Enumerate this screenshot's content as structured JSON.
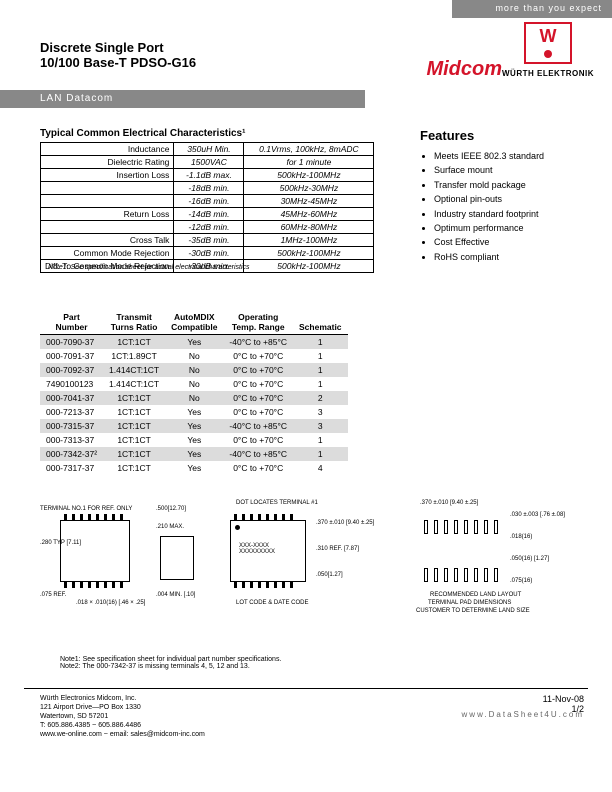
{
  "header": {
    "tagline": "more than you expect",
    "brand": "WÜRTH ELEKTRONIK",
    "midcom": "Midcom",
    "title_line1": "Discrete Single Port",
    "title_line2": "10/100 Base-T PDSO-G16",
    "band": "LAN Datacom",
    "logo_color": "#d4142a"
  },
  "characteristics": {
    "heading": "Typical Common Electrical Characteristics¹",
    "rows": [
      {
        "label": "Inductance",
        "v1": "350uH Min.",
        "v2": "0.1Vrms, 100kHz, 8mADC"
      },
      {
        "label": "Dielectric Rating",
        "v1": "1500VAC",
        "v2": "for 1 minute"
      },
      {
        "label": "Insertion Loss",
        "v1": "-1.1dB max.",
        "v2": "500kHz-100MHz"
      },
      {
        "label": "",
        "v1": "-18dB min.",
        "v2": "500kHz-30MHz"
      },
      {
        "label": "",
        "v1": "-16dB min.",
        "v2": "30MHz-45MHz"
      },
      {
        "label": "Return Loss",
        "v1": "-14dB min.",
        "v2": "45MHz-60MHz"
      },
      {
        "label": "",
        "v1": "-12dB min.",
        "v2": "60MHz-80MHz"
      },
      {
        "label": "Cross Talk",
        "v1": "-35dB min.",
        "v2": "1MHz-100MHz"
      },
      {
        "label": "Common Mode Rejection",
        "v1": "-30dB min.",
        "v2": "500kHz-100MHz"
      },
      {
        "label": "Diff. To Common Mode Rejection",
        "v1": "-30dB min.",
        "v2": "500kHz-100MHz"
      }
    ],
    "note": "Note1:  See specification sheet for actual electrical characteristics"
  },
  "features": {
    "heading": "Features",
    "items": [
      "Meets IEEE 802.3 standard",
      "Surface mount",
      "Transfer mold package",
      "Optional pin-outs",
      "Industry standard footprint",
      "Optimum performance",
      "Cost Effective",
      "RoHS compliant"
    ]
  },
  "parts": {
    "headers": {
      "pn1": "Part",
      "pn2": "Number",
      "tr1": "Transmit",
      "tr2": "Turns Ratio",
      "am1": "AutoMDIX",
      "am2": "Compatible",
      "ot1": "Operating",
      "ot2": "Temp. Range",
      "sc": "Schematic"
    },
    "rows": [
      {
        "shade": true,
        "pn": "000-7090-37",
        "tr": "1CT:1CT",
        "am": "Yes",
        "ot": "-40°C to +85°C",
        "sc": "1"
      },
      {
        "shade": false,
        "pn": "000-7091-37",
        "tr": "1CT:1.89CT",
        "am": "No",
        "ot": "0°C to +70°C",
        "sc": "1"
      },
      {
        "shade": true,
        "pn": "000-7092-37",
        "tr": "1.414CT:1CT",
        "am": "No",
        "ot": "0°C to +70°C",
        "sc": "1"
      },
      {
        "shade": false,
        "pn": "7490100123",
        "tr": "1.414CT:1CT",
        "am": "No",
        "ot": "0°C to +70°C",
        "sc": "1"
      },
      {
        "shade": true,
        "pn": "000-7041-37",
        "tr": "1CT:1CT",
        "am": "No",
        "ot": "0°C to +70°C",
        "sc": "2"
      },
      {
        "shade": false,
        "pn": "000-7213-37",
        "tr": "1CT:1CT",
        "am": "Yes",
        "ot": "0°C to +70°C",
        "sc": "3"
      },
      {
        "shade": true,
        "pn": "000-7315-37",
        "tr": "1CT:1CT",
        "am": "Yes",
        "ot": "-40°C to +85°C",
        "sc": "3"
      },
      {
        "shade": false,
        "pn": "000-7313-37",
        "tr": "1CT:1CT",
        "am": "Yes",
        "ot": "0°C to +70°C",
        "sc": "1"
      },
      {
        "shade": true,
        "pn": "000-7342-37²",
        "tr": "1CT:1CT",
        "am": "Yes",
        "ot": "-40°C to +85°C",
        "sc": "1"
      },
      {
        "shade": false,
        "pn": "000-7317-37",
        "tr": "1CT:1CT",
        "am": "Yes",
        "ot": "0°C to +70°C",
        "sc": "4"
      }
    ]
  },
  "diagrams": {
    "terminal_ref": "TERMINAL NO.1 FOR REF. ONLY",
    "dot_locates": "DOT LOCATES TERMINAL #1",
    "dim_280": ".280 TYP [7.11]",
    "dim_075": ".075 REF.",
    "dim_018x010": ".018 × .010(16) [.46 × .25]",
    "dim_500": ".500[12.70]",
    "dim_210": ".210 MAX.",
    "dim_004": ".004 MIN. [.10]",
    "dim_370": ".370 ±.010 [9.40 ±.25]",
    "dim_310": ".310 REF. [7.87]",
    "dim_050": ".050[1.27]",
    "lot_date": "LOT CODE & DATE CODE",
    "dim_370b": ".370 ±.010 [9.40 ±.25]",
    "dim_030": ".030 ±.003 [.76 ±.08]",
    "dim_018": ".018(16)",
    "dim_050b": ".050(16) [1.27]",
    "dim_075b": ".075(16)",
    "pad_note1": "RECOMMENDED LAND LAYOUT",
    "pad_note2": "TERMINAL PAD DIMENSIONS",
    "pad_note3": "CUSTOMER TO DETERMINE LAND SIZE"
  },
  "notes": {
    "n1": "Note1:  See specification sheet for individual part number specifications.",
    "n2": "Note2:  The 000-7342-37 is missing terminals 4, 5, 12 and 13."
  },
  "footer": {
    "company": "Würth Electronics Midcom, Inc.",
    "addr1": "121 Airport Drive—PO Box 1330",
    "addr2": "Watertown, SD  57201",
    "tel": "T: 605.886.4385 ~ 605.886.4486",
    "web": "www.we-online.com ~ email: sales@midcom-inc.com",
    "date": "11-Nov-08",
    "page": "1/2",
    "ds": "www.DataSheet4U.com"
  }
}
